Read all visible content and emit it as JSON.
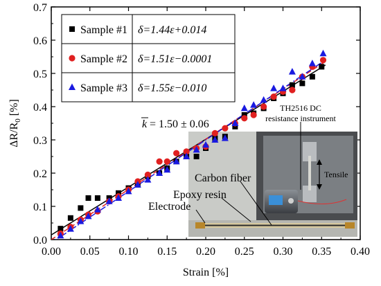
{
  "chart_data": {
    "type": "scatter",
    "title": "",
    "xlabel": "Strain [%]",
    "ylabel_main": "ΔR/R",
    "ylabel_sub": "0",
    "ylabel_unit": " [%]",
    "xlim": [
      0.0,
      0.4
    ],
    "ylim": [
      0.0,
      0.7
    ],
    "x_ticks": [
      0.0,
      0.05,
      0.1,
      0.15,
      0.2,
      0.25,
      0.3,
      0.35,
      0.4
    ],
    "x_tick_labels": [
      "0.00",
      "0.05",
      "0.10",
      "0.15",
      "0.20",
      "0.25",
      "0.30",
      "0.35",
      "0.40"
    ],
    "y_ticks": [
      0.0,
      0.1,
      0.2,
      0.3,
      0.4,
      0.5,
      0.6,
      0.7
    ],
    "y_tick_labels": [
      "0.0",
      "0.1",
      "0.2",
      "0.3",
      "0.4",
      "0.5",
      "0.6",
      "0.7"
    ],
    "grid": false,
    "legend_position": "top-left",
    "series": [
      {
        "name": "Sample #1",
        "marker": "square",
        "color": "#000000",
        "fit_label": "δ=1.44ε+0.014",
        "fit": {
          "slope": 1.44,
          "intercept": 0.014,
          "style": "solid"
        },
        "x": [
          0.012,
          0.025,
          0.038,
          0.048,
          0.06,
          0.075,
          0.087,
          0.1,
          0.112,
          0.125,
          0.14,
          0.15,
          0.162,
          0.175,
          0.188,
          0.2,
          0.212,
          0.225,
          0.238,
          0.25,
          0.262,
          0.275,
          0.288,
          0.3,
          0.312,
          0.325,
          0.338,
          0.35
        ],
        "y": [
          0.033,
          0.065,
          0.095,
          0.125,
          0.125,
          0.125,
          0.14,
          0.155,
          0.165,
          0.19,
          0.2,
          0.215,
          0.235,
          0.25,
          0.25,
          0.275,
          0.305,
          0.31,
          0.34,
          0.375,
          0.38,
          0.395,
          0.425,
          0.44,
          0.465,
          0.47,
          0.49,
          0.52
        ]
      },
      {
        "name": "Sample #2",
        "marker": "circle",
        "color": "#e02020",
        "fit_label": "δ=1.51ε−0.0001",
        "fit": {
          "slope": 1.51,
          "intercept": -0.0001,
          "style": "dashed"
        },
        "x": [
          0.012,
          0.025,
          0.038,
          0.048,
          0.06,
          0.075,
          0.087,
          0.1,
          0.112,
          0.125,
          0.14,
          0.15,
          0.162,
          0.175,
          0.188,
          0.2,
          0.212,
          0.225,
          0.238,
          0.25,
          0.262,
          0.275,
          0.288,
          0.3,
          0.312,
          0.325,
          0.338,
          0.352
        ],
        "y": [
          0.018,
          0.038,
          0.06,
          0.075,
          0.085,
          0.115,
          0.13,
          0.15,
          0.175,
          0.195,
          0.235,
          0.235,
          0.26,
          0.265,
          0.275,
          0.28,
          0.32,
          0.335,
          0.35,
          0.365,
          0.375,
          0.4,
          0.43,
          0.445,
          0.45,
          0.49,
          0.52,
          0.54
        ]
      },
      {
        "name": "Sample #3",
        "marker": "triangle",
        "color": "#1a1ae0",
        "fit_label": "δ=1.55ε−0.010",
        "fit": {
          "slope": 1.55,
          "intercept": -0.01,
          "style": "dashdot"
        },
        "x": [
          0.012,
          0.025,
          0.038,
          0.048,
          0.06,
          0.075,
          0.087,
          0.1,
          0.112,
          0.125,
          0.14,
          0.15,
          0.162,
          0.175,
          0.188,
          0.2,
          0.212,
          0.225,
          0.238,
          0.25,
          0.262,
          0.275,
          0.288,
          0.3,
          0.312,
          0.325,
          0.338,
          0.352
        ],
        "y": [
          0.012,
          0.032,
          0.055,
          0.07,
          0.09,
          0.115,
          0.125,
          0.145,
          0.165,
          0.18,
          0.2,
          0.21,
          0.235,
          0.25,
          0.27,
          0.285,
          0.3,
          0.305,
          0.35,
          0.395,
          0.405,
          0.42,
          0.455,
          0.455,
          0.505,
          0.49,
          0.53,
          0.56
        ]
      }
    ],
    "annotation_k": {
      "symbol": "k",
      "value": "= 1.50 ± 0.06"
    },
    "inset": {
      "labels": {
        "instrument": "TH2516 DC",
        "instrument2": "resistance instrument",
        "tensile": "Tensile",
        "carbon": "Carbon fiber",
        "epoxy": "Epoxy resin",
        "electrode": "Electrode"
      }
    }
  }
}
